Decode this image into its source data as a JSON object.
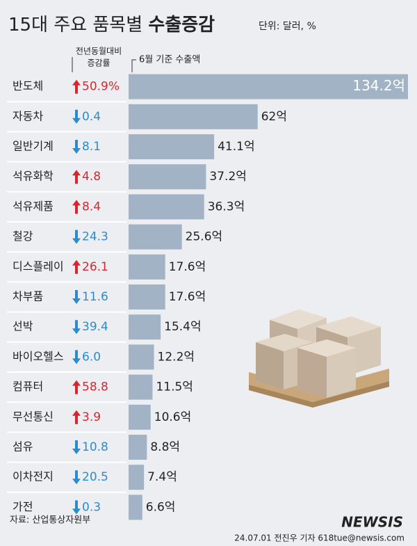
{
  "chart_data": {
    "type": "bar",
    "title": "15대 주요 품목별",
    "title_emphasis": "수출증감",
    "unit": "단위: 달러, %",
    "change_header": [
      "전년동월대비",
      "증감률"
    ],
    "value_header": "6월 기준 수출액",
    "categories": [
      "반도체",
      "자동차",
      "일반기계",
      "석유화학",
      "석유제품",
      "철강",
      "디스플레이",
      "차부품",
      "선박",
      "바이오헬스",
      "컴퓨터",
      "무선통신",
      "섬유",
      "이차전지",
      "가전"
    ],
    "values": [
      134.2,
      62,
      41.1,
      37.2,
      36.3,
      25.6,
      17.6,
      17.6,
      15.4,
      12.2,
      11.5,
      10.6,
      8.8,
      7.4,
      6.6
    ],
    "value_labels": [
      "134.2억",
      "62억",
      "41.1억",
      "37.2억",
      "36.3억",
      "25.6억",
      "17.6억",
      "17.6억",
      "15.4억",
      "12.2억",
      "11.5억",
      "10.6억",
      "8.8억",
      "7.4억",
      "6.6억"
    ],
    "change": [
      50.9,
      -0.4,
      -8.1,
      4.8,
      8.4,
      -24.3,
      26.1,
      -11.6,
      -39.4,
      -6.0,
      58.8,
      3.9,
      -10.8,
      -20.5,
      -0.3
    ],
    "change_labels": [
      "50.9%",
      "0.4",
      "8.1",
      "4.8",
      "8.4",
      "24.3",
      "26.1",
      "11.6",
      "39.4",
      "6.0",
      "58.8",
      "3.9",
      "10.8",
      "20.5",
      "0.3"
    ],
    "color": "#a2b3c5",
    "up_color": "#d9262e",
    "down_color": "#2a8ccf",
    "xlim": [
      0,
      134.2
    ],
    "source": "자료: 산업통상자원부",
    "logo": "NEWSIS",
    "credit": "24.07.01 전진우 기자 618tue@newsis.com"
  }
}
